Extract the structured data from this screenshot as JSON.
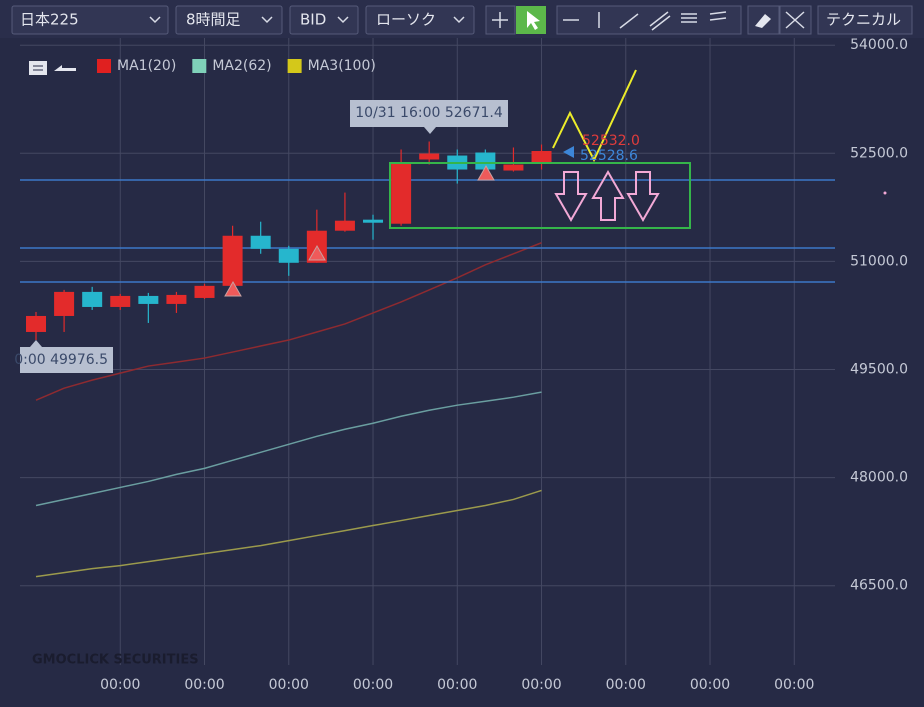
{
  "toolbar": {
    "symbol": "日本225",
    "interval": "8時間足",
    "price_type": "BID",
    "chart_style": "ローソク",
    "technical": "テクニカル"
  },
  "chart_data": {
    "type": "candlestick",
    "open": [
      50021,
      50243,
      50577,
      50368,
      50521,
      50410,
      50493,
      50661,
      51356,
      51175,
      50981,
      51426,
      51579,
      51523,
      52414,
      52469,
      52511,
      52261,
      52358
    ],
    "high": [
      50299,
      50605,
      50647,
      50549,
      50563,
      50577,
      50689,
      51495,
      51551,
      51217,
      51718,
      51955,
      51648,
      52553,
      52664,
      52553,
      52553,
      52581,
      52622
    ],
    "low": [
      49909,
      50021,
      50327,
      50327,
      50146,
      50285,
      50479,
      50605,
      51106,
      50800,
      50981,
      51412,
      51301,
      51495,
      52344,
      52080,
      52247,
      52247,
      52275
    ],
    "close": [
      50243,
      50577,
      50368,
      50521,
      50410,
      50535,
      50661,
      51356,
      51175,
      50981,
      51426,
      51565,
      51537,
      52372,
      52497,
      52275,
      52275,
      52344,
      52532
    ],
    "up_color": "#e32b2b",
    "down_color": "#26b6cd",
    "series": [
      {
        "name": "MA1(20)",
        "color": "#e02020",
        "line_color": "#8e2a30",
        "values": [
          49074,
          49241,
          49353,
          49450,
          49548,
          49603,
          49659,
          49742,
          49826,
          49909,
          50021,
          50132,
          50285,
          50438,
          50605,
          50772,
          50953,
          51106,
          51259
        ]
      },
      {
        "name": "MA2(62)",
        "color": "#7fd1b9",
        "line_color": "#6a9ea0",
        "values": [
          47613,
          47697,
          47780,
          47864,
          47947,
          48045,
          48128,
          48240,
          48351,
          48462,
          48573,
          48671,
          48754,
          48852,
          48935,
          49005,
          49060,
          49116,
          49186
        ]
      },
      {
        "name": "MA3(100)",
        "color": "#d4c81a",
        "line_color": "#9b9a4c",
        "values": [
          46626,
          46681,
          46737,
          46779,
          46834,
          46890,
          46946,
          47001,
          47057,
          47126,
          47196,
          47265,
          47335,
          47404,
          47474,
          47544,
          47613,
          47697,
          47822
        ]
      }
    ],
    "xlim": [
      -0.57,
      28.45
    ],
    "xticks": [
      {
        "value": 3,
        "label": "00:00"
      },
      {
        "value": 6,
        "label": "00:00"
      },
      {
        "value": 9,
        "label": "00:00"
      },
      {
        "value": 12,
        "label": "00:00"
      },
      {
        "value": 15,
        "label": "00:00"
      },
      {
        "value": 18,
        "label": "00:00"
      },
      {
        "value": 21,
        "label": "00:00"
      },
      {
        "value": 24,
        "label": "00:00"
      },
      {
        "value": 27,
        "label": "00:00"
      }
    ],
    "ylim": [
      45400,
      54100
    ],
    "yticks": [
      {
        "value": 46500,
        "label": "46500.0"
      },
      {
        "value": 48000,
        "label": "48000.0"
      },
      {
        "value": 49500,
        "label": "49500.0"
      },
      {
        "value": 51000,
        "label": "51000.0"
      },
      {
        "value": 52500,
        "label": "52500.0"
      },
      {
        "value": 54000,
        "label": "54000.0"
      }
    ],
    "grid": true,
    "annotations": {
      "tooltip": "10/31 16:00 52671.4",
      "low_label": "0:00 49976.5",
      "price_bid": "52532.0",
      "price_ma": "52528.6"
    },
    "watermark": "GMOCLICK SECURITIES"
  }
}
